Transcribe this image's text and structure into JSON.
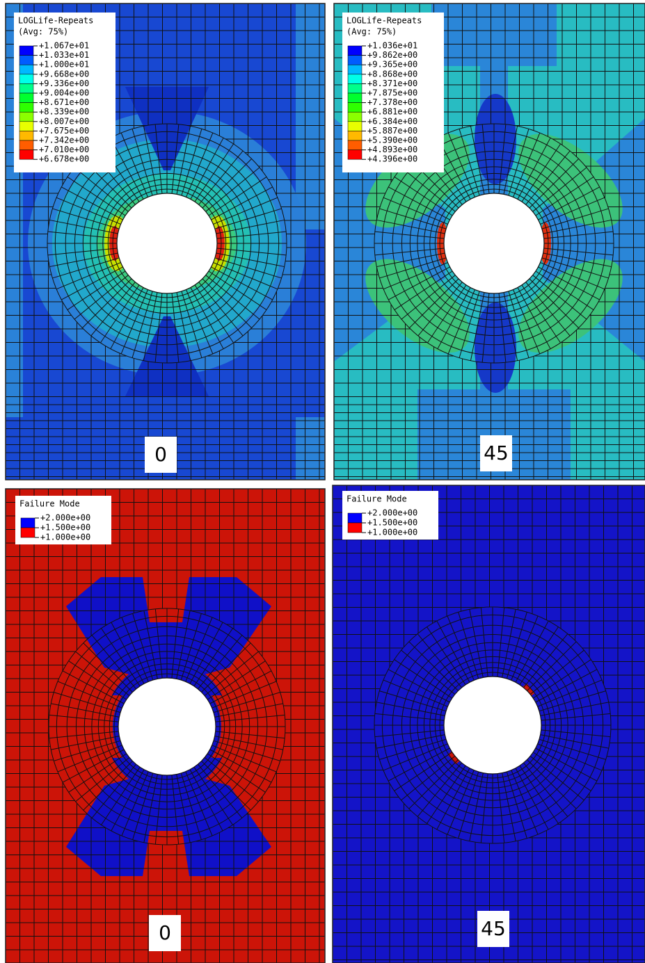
{
  "panels": [
    {
      "legend": {
        "title": "LOGLife-Repeats",
        "subtitle": "(Avg: 75%)",
        "values": [
          "+1.067e+01",
          "+1.033e+01",
          "+1.000e+01",
          "+9.668e+00",
          "+9.336e+00",
          "+9.004e+00",
          "+8.671e+00",
          "+8.339e+00",
          "+8.007e+00",
          "+7.675e+00",
          "+7.342e+00",
          "+7.010e+00",
          "+6.678e+00"
        ]
      },
      "label": "0"
    },
    {
      "legend": {
        "title": "LOGLife-Repeats",
        "subtitle": "(Avg: 75%)",
        "values": [
          "+1.036e+01",
          "+9.862e+00",
          "+9.365e+00",
          "+8.868e+00",
          "+8.371e+00",
          "+7.875e+00",
          "+7.378e+00",
          "+6.881e+00",
          "+6.384e+00",
          "+5.887e+00",
          "+5.390e+00",
          "+4.893e+00",
          "+4.396e+00"
        ]
      },
      "label": "45"
    },
    {
      "legend": {
        "title": "Failure Mode",
        "values": [
          "+2.000e+00",
          "+1.500e+00",
          "+1.000e+00"
        ]
      },
      "label": "0"
    },
    {
      "legend": {
        "title": "Failure Mode",
        "values": [
          "+2.000e+00",
          "+1.500e+00",
          "+1.000e+00"
        ]
      },
      "label": "45"
    }
  ]
}
